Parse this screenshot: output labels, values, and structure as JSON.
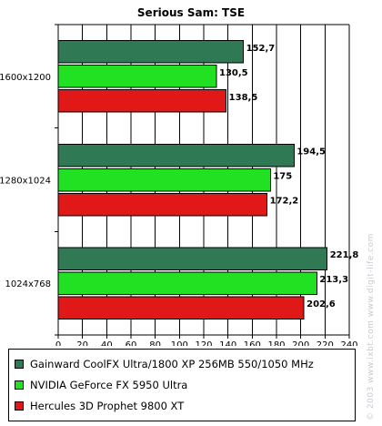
{
  "chart_data": {
    "type": "bar",
    "orientation": "horizontal",
    "title": "Serious Sam: TSE",
    "categories": [
      "1600x1200",
      "1280x1024",
      "1024x768"
    ],
    "series": [
      {
        "name": "Gainward CoolFX Ultra/1800 XP 256MB 550/1050 MHz",
        "values": [
          152.7,
          194.5,
          221.8
        ],
        "labels": [
          "152,7",
          "194,5",
          "221,8"
        ],
        "color": "#2f7a55"
      },
      {
        "name": "NVIDIA GeForce FX 5950 Ultra",
        "values": [
          130.5,
          175,
          213.3
        ],
        "labels": [
          "130,5",
          "175",
          "213,3"
        ],
        "color": "#22e022"
      },
      {
        "name": "Hercules 3D Prophet 9800 XT",
        "values": [
          138.5,
          172.2,
          202.6
        ],
        "labels": [
          "138,5",
          "172,2",
          "202,6"
        ],
        "color": "#e01818"
      }
    ],
    "xlim": [
      0,
      240
    ],
    "xticks": [
      "0",
      "20",
      "40",
      "60",
      "80",
      "100",
      "120",
      "140",
      "160",
      "180",
      "200",
      "220",
      "240"
    ],
    "grid": true,
    "legend": "bottom"
  },
  "watermark": "© 2003 www.ixbt.com  www.digit-life.com"
}
